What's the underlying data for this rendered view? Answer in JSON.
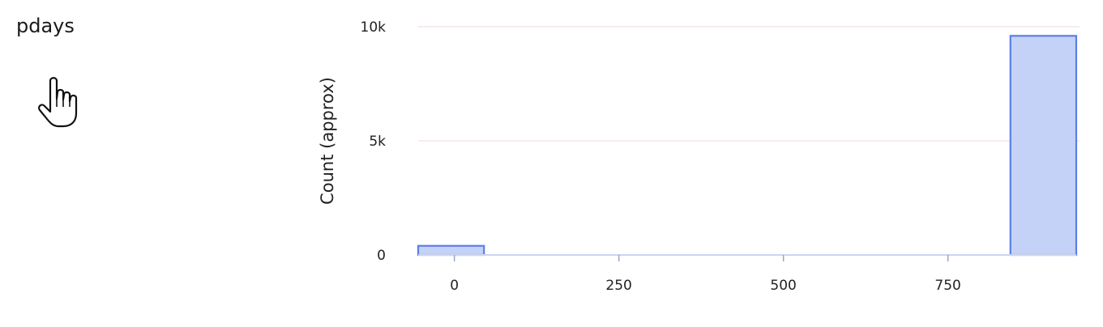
{
  "field": {
    "name": "pdays"
  },
  "cursor": {
    "icon": "pointer-hand-icon"
  },
  "chart_data": {
    "type": "bar",
    "title": "",
    "xlabel": "",
    "ylabel": "Count (approx)",
    "xlim": [
      -55,
      945
    ],
    "ylim": [
      0,
      10000
    ],
    "x_ticks": [
      0,
      250,
      500,
      750
    ],
    "x_tick_labels": [
      "0",
      "250",
      "500",
      "750"
    ],
    "y_ticks": [
      0,
      5000,
      10000
    ],
    "y_tick_labels": [
      "0",
      "5k",
      "10k"
    ],
    "grid": true,
    "bins": [
      {
        "x0": -55,
        "x1": 45,
        "value": 400
      },
      {
        "x0": 845,
        "x1": 945,
        "value": 9600
      }
    ],
    "colors": {
      "bar_fill": "#c5d2f7",
      "bar_stroke": "#5b7ee8",
      "grid": "#f3e6ec",
      "baseline": "#cbd5ee"
    }
  }
}
